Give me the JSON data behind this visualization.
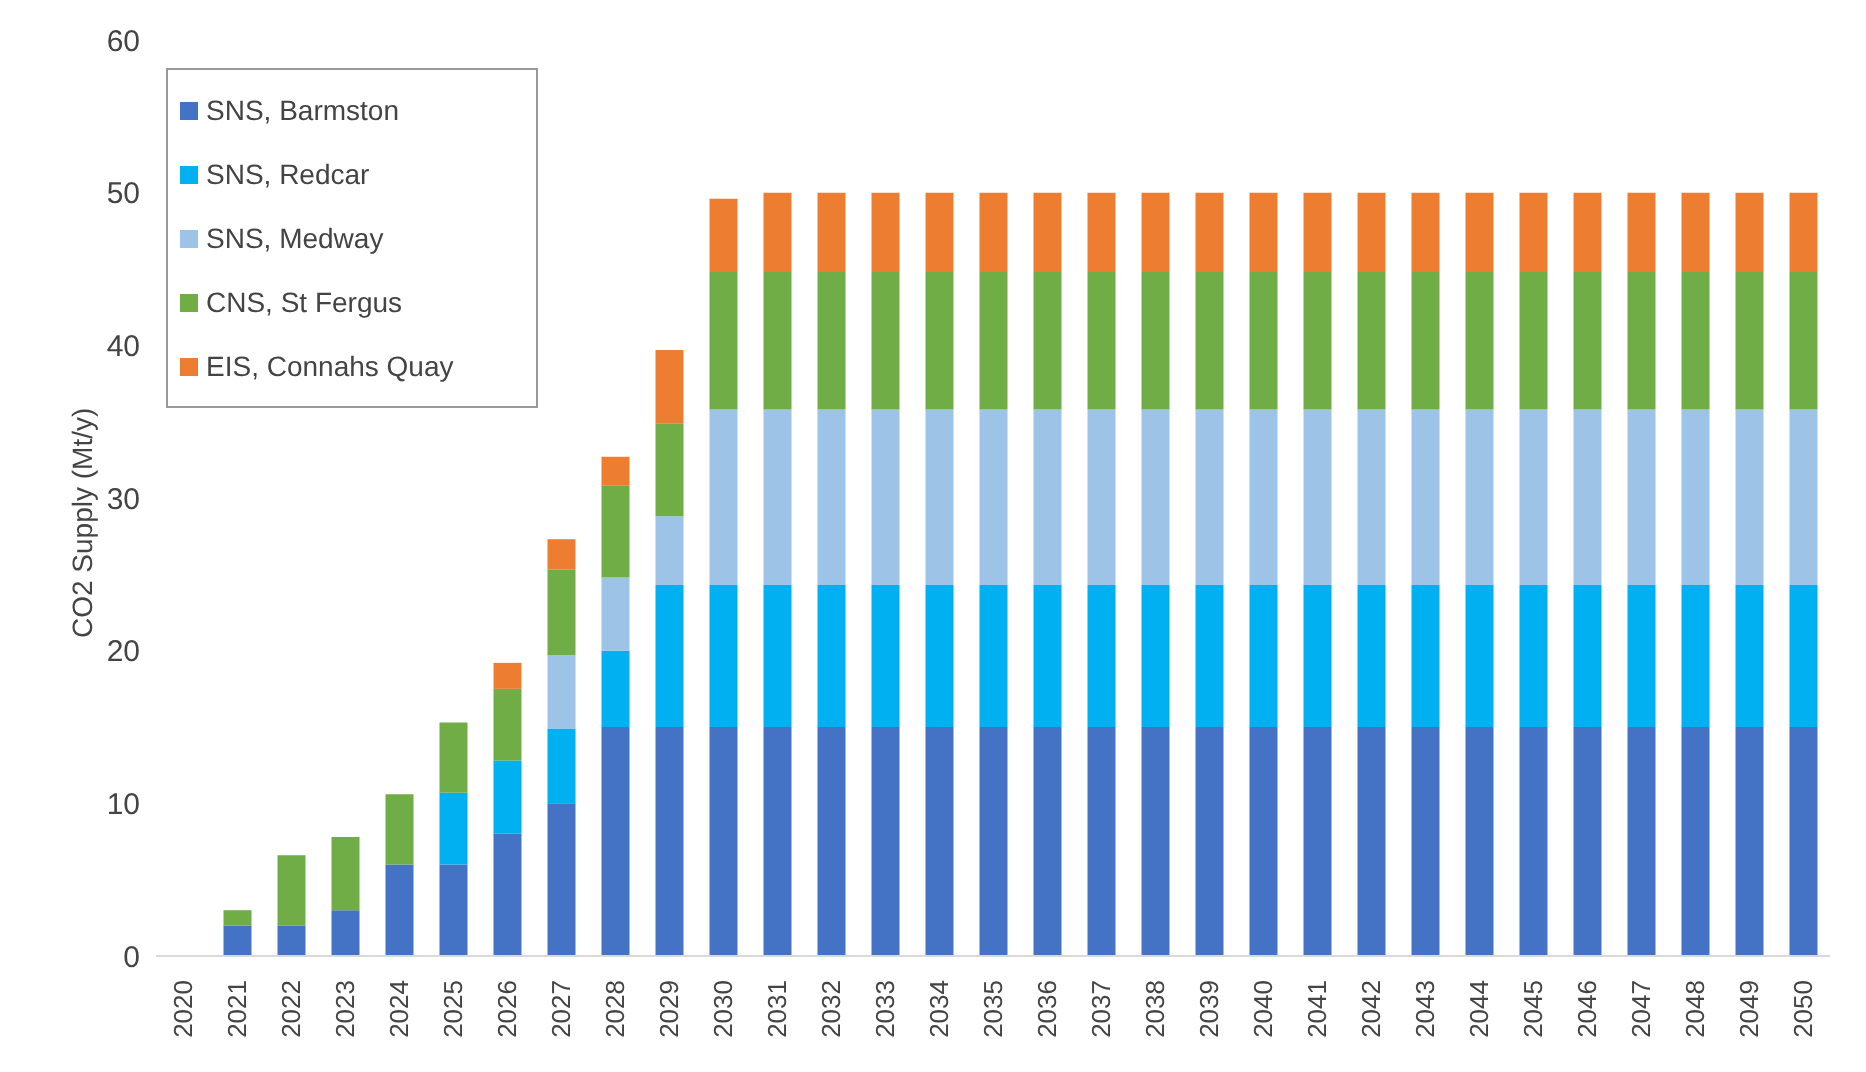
{
  "chart_data": {
    "type": "bar",
    "stacked": true,
    "ylabel": "CO2 Supply (Mt/y)",
    "categories": [
      "2020",
      "2021",
      "2022",
      "2023",
      "2024",
      "2025",
      "2026",
      "2027",
      "2028",
      "2029",
      "2030",
      "2031",
      "2032",
      "2033",
      "2034",
      "2035",
      "2036",
      "2037",
      "2038",
      "2039",
      "2040",
      "2041",
      "2042",
      "2043",
      "2044",
      "2045",
      "2046",
      "2047",
      "2048",
      "2049",
      "2050"
    ],
    "series": [
      {
        "name": "SNS, Barmston",
        "color": "#4472c4",
        "values": [
          0,
          2,
          2,
          3,
          6,
          6,
          8,
          10,
          15,
          15,
          15,
          15,
          15,
          15,
          15,
          15,
          15,
          15,
          15,
          15,
          15,
          15,
          15,
          15,
          15,
          15,
          15,
          15,
          15,
          15,
          15
        ]
      },
      {
        "name": "SNS, Redcar",
        "color": "#00b0f0",
        "values": [
          0,
          0,
          0,
          0,
          0,
          4.7,
          4.8,
          4.9,
          5,
          9.3,
          9.3,
          9.3,
          9.3,
          9.3,
          9.3,
          9.3,
          9.3,
          9.3,
          9.3,
          9.3,
          9.3,
          9.3,
          9.3,
          9.3,
          9.3,
          9.3,
          9.3,
          9.3,
          9.3,
          9.3,
          9.3
        ]
      },
      {
        "name": "SNS, Medway",
        "color": "#9dc3e6",
        "values": [
          0,
          0,
          0,
          0,
          0,
          0,
          0,
          4.8,
          4.8,
          4.5,
          11.5,
          11.5,
          11.5,
          11.5,
          11.5,
          11.5,
          11.5,
          11.5,
          11.5,
          11.5,
          11.5,
          11.5,
          11.5,
          11.5,
          11.5,
          11.5,
          11.5,
          11.5,
          11.5,
          11.5,
          11.5
        ]
      },
      {
        "name": "CNS, St Fergus",
        "color": "#70ad47",
        "values": [
          0,
          1,
          4.6,
          4.8,
          4.6,
          4.6,
          4.7,
          5.6,
          6,
          6.1,
          9,
          9,
          9,
          9,
          9,
          9,
          9,
          9,
          9,
          9,
          9,
          9,
          9,
          9,
          9,
          9,
          9,
          9,
          9,
          9,
          9
        ]
      },
      {
        "name": "EIS, Connahs Quay",
        "color": "#ed7d31",
        "values": [
          0,
          0,
          0,
          0,
          0,
          0,
          1.7,
          2,
          1.9,
          4.8,
          4.8,
          5.2,
          5.2,
          5.2,
          5.2,
          5.2,
          5.2,
          5.2,
          5.2,
          5.2,
          5.2,
          5.2,
          5.2,
          5.2,
          5.2,
          5.2,
          5.2,
          5.2,
          5.2,
          5.2,
          5.2
        ]
      }
    ],
    "ylim": [
      0,
      60
    ],
    "yticks": [
      0,
      10,
      20,
      30,
      40,
      50,
      60
    ],
    "grid": false,
    "legend": "top left"
  }
}
